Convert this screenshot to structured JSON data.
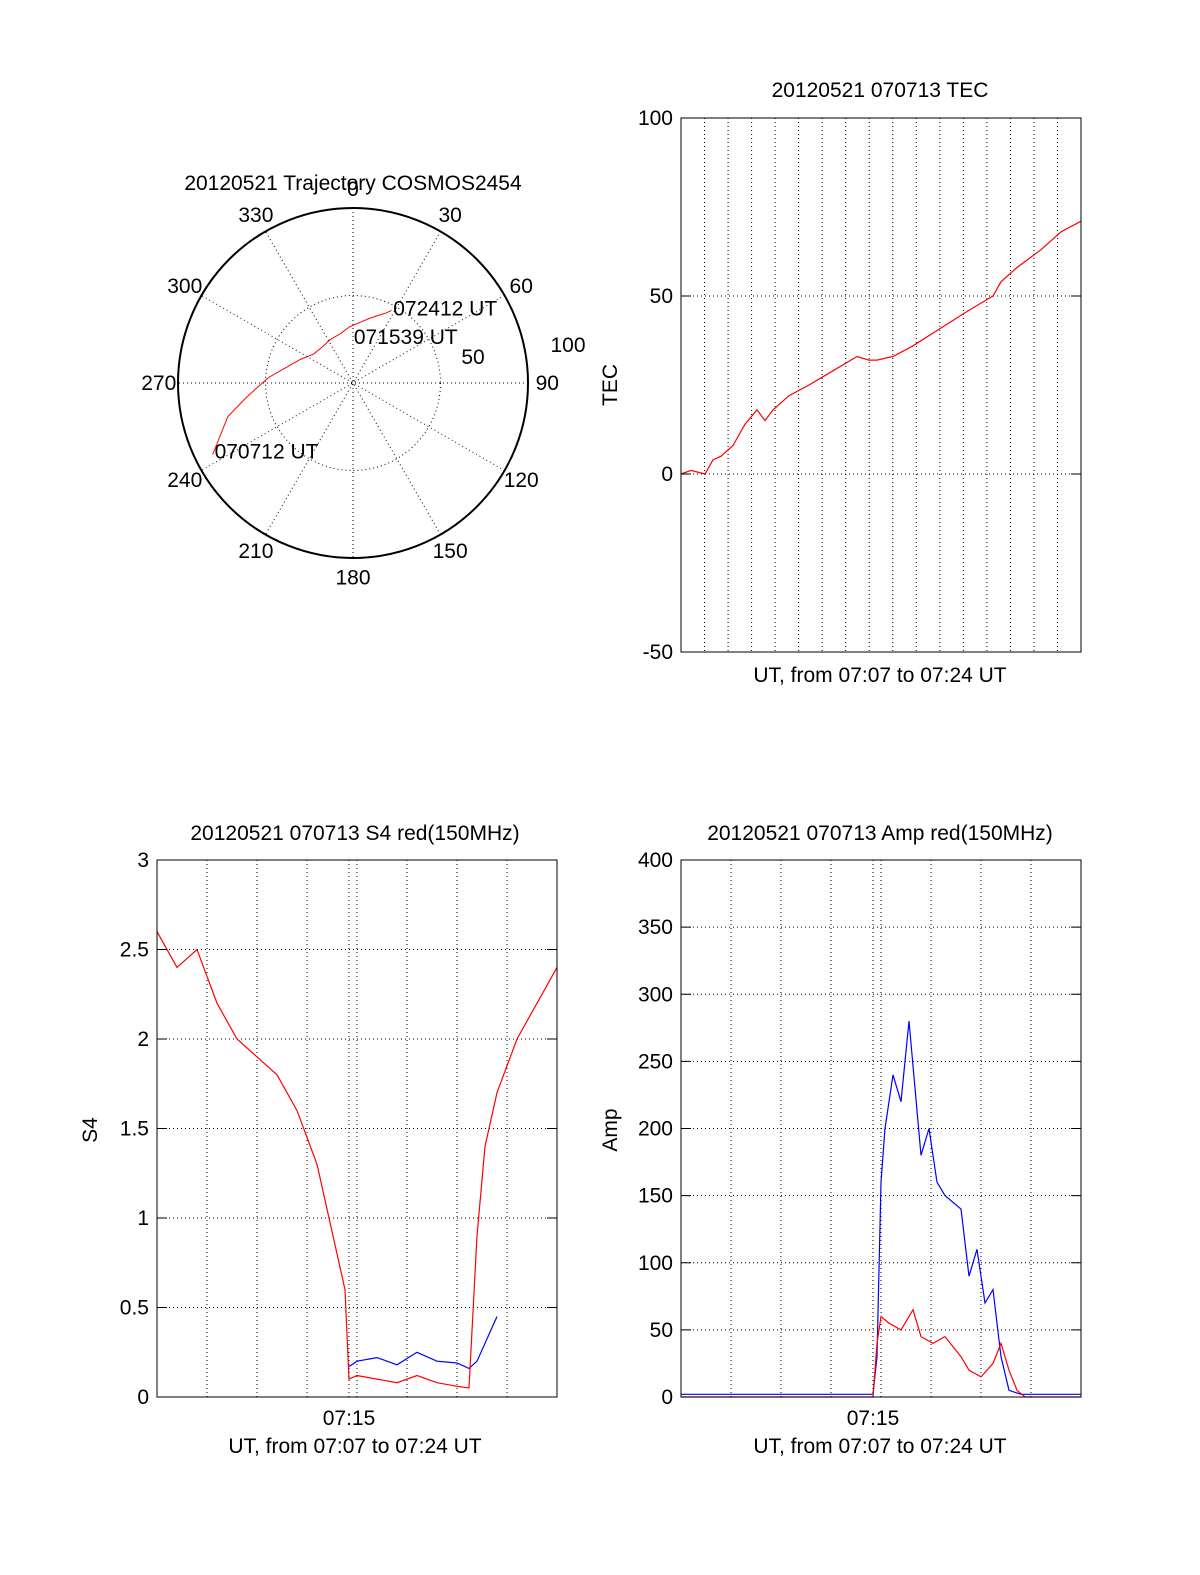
{
  "colors": {
    "red": "#ff0000",
    "blue": "#0000ff",
    "axis": "#000000"
  },
  "chart_data": [
    {
      "type": "polar",
      "title": "20120521 Trajectory COSMOS2454",
      "angle_labels": [
        "0",
        "30",
        "60",
        "90",
        "120",
        "150",
        "180",
        "210",
        "240",
        "270",
        "300",
        "330"
      ],
      "radius_labels": [
        "50",
        "100"
      ],
      "series": [
        {
          "color": "red",
          "points": [
            [
              243,
              90
            ],
            [
              255,
              74
            ],
            [
              262,
              62
            ],
            [
              268,
              54
            ],
            [
              274,
              48
            ],
            [
              282,
              40
            ],
            [
              294,
              33
            ],
            [
              306,
              28
            ],
            [
              319,
              27
            ],
            [
              332,
              28
            ],
            [
              345,
              29
            ],
            [
              356,
              32
            ],
            [
              7,
              35
            ],
            [
              14,
              38
            ],
            [
              20,
              41
            ],
            [
              25,
              44
            ],
            [
              28,
              47
            ]
          ]
        }
      ],
      "annotations": [
        {
          "text": "072412 UT",
          "az": 28,
          "r": 49
        },
        {
          "text": "071539 UT",
          "az": 1,
          "r": 27
        },
        {
          "text": "070712 UT",
          "az": 244,
          "r": 88
        }
      ]
    },
    {
      "type": "line",
      "title": "20120521 070713 TEC",
      "xlabel": "UT, from 07:07 to 07:24 UT",
      "ylabel": "TEC",
      "ylim": [
        -50,
        100
      ],
      "yticks": [
        "-50",
        "0",
        "50",
        "100"
      ],
      "xlim": [
        0,
        1
      ],
      "series": [
        {
          "color": "red",
          "x": [
            0,
            0.025,
            0.06,
            0.08,
            0.1,
            0.13,
            0.16,
            0.19,
            0.21,
            0.23,
            0.27,
            0.32,
            0.38,
            0.44,
            0.47,
            0.49,
            0.53,
            0.58,
            0.65,
            0.72,
            0.78,
            0.8,
            0.84,
            0.9,
            0.95,
            1.0
          ],
          "y": [
            0,
            1,
            0,
            4,
            5,
            8,
            14,
            18,
            15,
            18,
            22,
            25,
            29,
            33,
            32,
            32,
            33,
            36,
            41,
            46,
            50,
            54,
            58,
            63,
            68,
            71
          ]
        }
      ]
    },
    {
      "type": "line",
      "title": "20120521 070713 S4 red(150MHz)",
      "xlabel": "UT, from 07:07 to 07:24 UT",
      "ylabel": "S4",
      "ylim": [
        0,
        3
      ],
      "yticks": [
        "0",
        "0.5",
        "1",
        "1.5",
        "2",
        "2.5",
        "3"
      ],
      "xticks": [
        "07:15"
      ],
      "series": [
        {
          "color": "blue",
          "name": "",
          "x": [
            0.48,
            0.5,
            0.55,
            0.6,
            0.65,
            0.7,
            0.75,
            0.78,
            0.8,
            0.85
          ],
          "y": [
            0.17,
            0.2,
            0.22,
            0.18,
            0.25,
            0.2,
            0.19,
            0.16,
            0.2,
            0.45
          ]
        },
        {
          "color": "red",
          "name": "",
          "x": [
            0.0,
            0.05,
            0.1,
            0.15,
            0.2,
            0.25,
            0.3,
            0.35,
            0.4,
            0.43,
            0.45,
            0.47,
            0.48,
            0.5,
            0.55,
            0.6,
            0.65,
            0.7,
            0.75,
            0.78,
            0.8,
            0.82,
            0.85,
            0.9,
            1.0
          ],
          "y": [
            2.6,
            2.4,
            2.5,
            2.2,
            2.0,
            1.9,
            1.8,
            1.6,
            1.3,
            1.0,
            0.8,
            0.6,
            0.1,
            0.12,
            0.1,
            0.08,
            0.12,
            0.08,
            0.06,
            0.05,
            0.9,
            1.4,
            1.7,
            2.0,
            2.4
          ]
        }
      ]
    },
    {
      "type": "line",
      "title": "20120521 070713 Amp red(150MHz)",
      "xlabel": "UT, from 07:07 to 07:24 UT",
      "ylabel": "Amp",
      "ylim": [
        0,
        400
      ],
      "yticks": [
        "0",
        "50",
        "100",
        "150",
        "200",
        "250",
        "300",
        "350",
        "400"
      ],
      "xticks": [
        "07:15"
      ],
      "series": [
        {
          "color": "blue",
          "x": [
            0,
            0.1,
            0.2,
            0.3,
            0.4,
            0.48,
            0.49,
            0.5,
            0.51,
            0.53,
            0.55,
            0.57,
            0.6,
            0.62,
            0.64,
            0.66,
            0.7,
            0.72,
            0.74,
            0.76,
            0.78,
            0.8,
            0.82,
            0.85,
            0.9,
            1.0
          ],
          "y": [
            2,
            2,
            2,
            2,
            2,
            2,
            30,
            160,
            200,
            240,
            220,
            280,
            180,
            200,
            160,
            150,
            140,
            90,
            110,
            70,
            80,
            30,
            5,
            2,
            2,
            2
          ]
        },
        {
          "color": "red",
          "x": [
            0,
            0.48,
            0.49,
            0.5,
            0.52,
            0.55,
            0.58,
            0.6,
            0.63,
            0.66,
            0.7,
            0.72,
            0.75,
            0.78,
            0.8,
            0.82,
            0.84,
            0.86,
            1.0
          ],
          "y": [
            0,
            0,
            40,
            60,
            55,
            50,
            65,
            45,
            40,
            45,
            30,
            20,
            15,
            25,
            40,
            20,
            5,
            0,
            0
          ]
        }
      ]
    }
  ]
}
